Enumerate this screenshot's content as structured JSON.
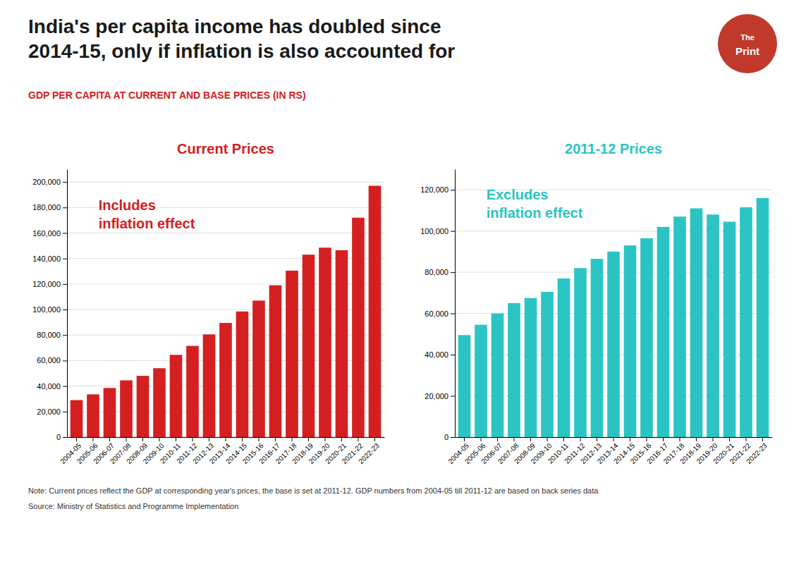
{
  "title": "India's per capita income has doubled since\n2014-15, only if inflation is also accounted for",
  "subtitle": "GDP PER CAPITA AT CURRENT AND BASE PRICES (IN RS)",
  "note": "Note: Current prices reflect the GDP at corresponding year's prices, the base is set at 2011-12. GDP numbers from 2004-05 till 2011-12 are based on back series data",
  "source": "Source: Ministry of Statistics and Programme Implementation",
  "logo": {
    "texts": [
      "The",
      "Print"
    ],
    "color": "#c0392b"
  },
  "chart_data": [
    {
      "type": "bar",
      "title": "Current Prices",
      "annotations": [
        "Includes\ninflation effect"
      ],
      "categories": [
        "2004-05",
        "2005-06",
        "2006-07",
        "2007-08",
        "2008-09",
        "2009-10",
        "2010-11",
        "2011-12",
        "2012-13",
        "2013-14",
        "2014-15",
        "2015-16",
        "2016-17",
        "2017-18",
        "2018-19",
        "2019-20",
        "2020-21",
        "2021-22",
        "2022-23"
      ],
      "values": [
        29000,
        33500,
        38500,
        44500,
        48000,
        54000,
        64500,
        71500,
        80500,
        89500,
        98500,
        107000,
        119000,
        130500,
        143000,
        148500,
        146500,
        172000,
        197000
      ],
      "color": "#d42020",
      "ylim": [
        0,
        210000
      ],
      "yticks": [
        0,
        {
          "value": 20000,
          "label": "20,000"
        },
        {
          "value": 40000,
          "label": "40,000"
        },
        {
          "value": 60000,
          "label": "60,000"
        },
        {
          "value": 80000,
          "label": "80,000"
        },
        {
          "value": 100000,
          "label": "100,000"
        },
        {
          "value": 120000,
          "label": "120,000"
        },
        {
          "value": 140000,
          "label": "140,000"
        },
        {
          "value": 160000,
          "label": "160,000"
        },
        {
          "value": 180000,
          "label": "180,000"
        },
        {
          "value": 200000,
          "label": "200,000"
        }
      ],
      "grid": true
    },
    {
      "type": "bar",
      "title": "2011-12 Prices",
      "annotations": [
        "Excludes\ninflation effect"
      ],
      "categories": [
        "2004-05",
        "2005-06",
        "2006-07",
        "2007-08",
        "2008-09",
        "2009-10",
        "2010-11",
        "2011-12",
        "2012-13",
        "2013-14",
        "2014-15",
        "2015-16",
        "2016-17",
        "2017-18",
        "2018-19",
        "2019-20",
        "2020-21",
        "2021-22",
        "2022-23"
      ],
      "values": [
        49500,
        54500,
        60000,
        65000,
        67500,
        70500,
        77000,
        82000,
        86500,
        90000,
        93000,
        96500,
        102000,
        107000,
        111000,
        108000,
        104500,
        111500,
        116000
      ],
      "color": "#2bc4c4",
      "ylim": [
        0,
        130000
      ],
      "yticks": [
        0,
        {
          "value": 20000,
          "label": "20,000"
        },
        {
          "value": 40000,
          "label": "40,000"
        },
        {
          "value": 60000,
          "label": "60,000"
        },
        {
          "value": 80000,
          "label": "80,000"
        },
        {
          "value": 100000,
          "label": "100,000"
        },
        {
          "value": 120000,
          "label": "120,000"
        }
      ],
      "grid": true
    }
  ]
}
